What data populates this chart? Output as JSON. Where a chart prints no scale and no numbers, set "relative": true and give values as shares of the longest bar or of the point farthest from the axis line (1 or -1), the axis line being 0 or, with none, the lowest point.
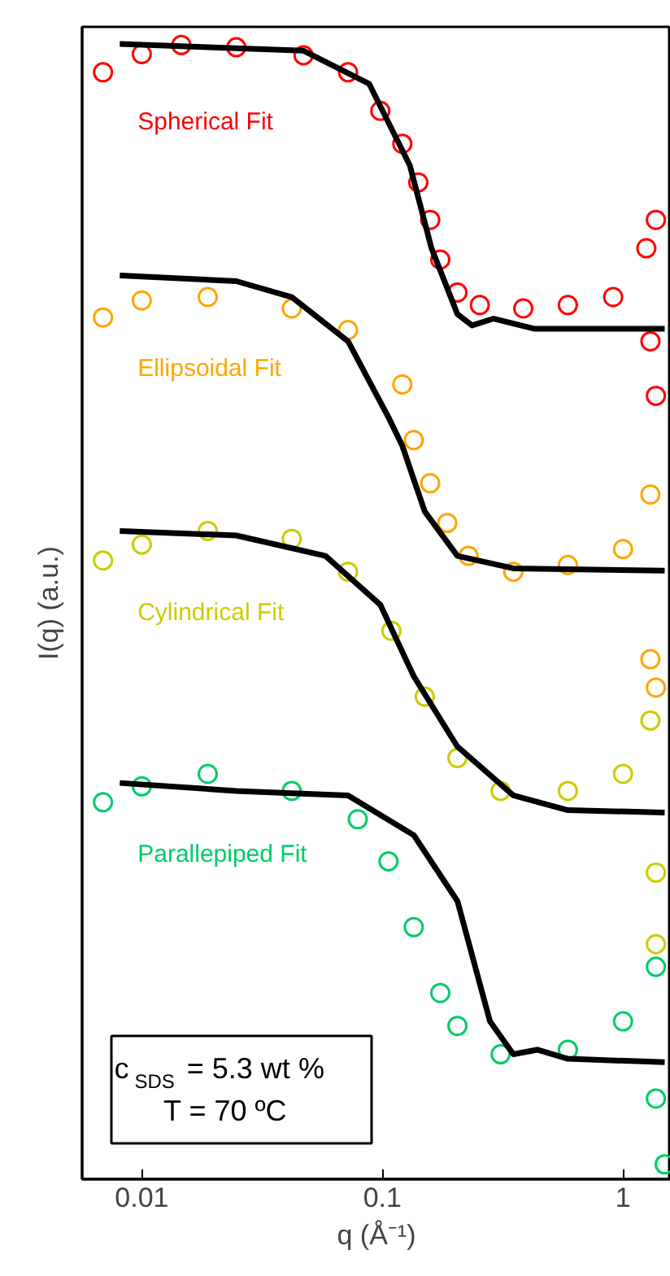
{
  "chart_data": {
    "type": "scatter",
    "relative": true,
    "xlabel": "q (Å⁻¹)",
    "ylabel": "I(q) (a.u.)",
    "log": "x",
    "xlim": [
      0.00565,
      1.58
    ],
    "xticks": [
      0.01,
      0.1,
      1
    ],
    "tick_labels": "x",
    "grid": false,
    "marker": "circle",
    "series": [
      {
        "name": "Spherical Fit",
        "color": "#ff0000",
        "x": [
          0.0069,
          0.01,
          0.0146,
          0.0247,
          0.047,
          0.072,
          0.098,
          0.121,
          0.141,
          0.158,
          0.174,
          0.205,
          0.254,
          0.385,
          0.59,
          0.91,
          1.25,
          1.37,
          1.3,
          1.37
        ],
        "values": [
          0.975,
          0.991,
          0.999,
          0.997,
          0.99,
          0.975,
          0.941,
          0.912,
          0.878,
          0.845,
          0.81,
          0.781,
          0.77,
          0.767,
          0.77,
          0.777,
          0.82,
          0.845,
          0.738,
          0.69
        ]
      },
      {
        "type": "line",
        "marker": "none",
        "color": "#000000",
        "x": [
          0.0081,
          0.047,
          0.088,
          0.13,
          0.16,
          0.205,
          0.236,
          0.29,
          0.43,
          1.49
        ],
        "values": [
          1.0,
          0.994,
          0.965,
          0.893,
          0.82,
          0.762,
          0.752,
          0.758,
          0.749,
          0.749
        ]
      },
      {
        "name": "Ellipsoidal Fit",
        "color": "#ffa500",
        "x": [
          0.0069,
          0.01,
          0.0188,
          0.042,
          0.072,
          0.121,
          0.135,
          0.158,
          0.186,
          0.228,
          0.35,
          0.59,
          1.0,
          1.3,
          1.3,
          1.37
        ],
        "values": [
          0.759,
          0.774,
          0.777,
          0.767,
          0.748,
          0.7,
          0.651,
          0.613,
          0.578,
          0.549,
          0.535,
          0.541,
          0.555,
          0.603,
          0.458,
          0.433
        ]
      },
      {
        "type": "line",
        "marker": "none",
        "color": "#000000",
        "x": [
          0.0081,
          0.0247,
          0.042,
          0.072,
          0.106,
          0.121,
          0.15,
          0.205,
          0.35,
          1.49
        ],
        "values": [
          0.796,
          0.791,
          0.777,
          0.738,
          0.671,
          0.646,
          0.588,
          0.549,
          0.538,
          0.536
        ]
      },
      {
        "name": "Cylindrical Fit",
        "color": "#cccc00",
        "x": [
          0.0069,
          0.01,
          0.0188,
          0.042,
          0.072,
          0.109,
          0.15,
          0.205,
          0.31,
          0.59,
          1.0,
          1.3,
          1.37,
          1.37
        ],
        "values": [
          0.545,
          0.559,
          0.571,
          0.564,
          0.535,
          0.483,
          0.425,
          0.371,
          0.342,
          0.342,
          0.357,
          0.404,
          0.27,
          0.207
        ]
      },
      {
        "type": "line",
        "marker": "none",
        "color": "#000000",
        "x": [
          0.0081,
          0.0247,
          0.058,
          0.098,
          0.135,
          0.205,
          0.35,
          0.59,
          1.49
        ],
        "values": [
          0.571,
          0.567,
          0.549,
          0.506,
          0.443,
          0.381,
          0.338,
          0.325,
          0.323
        ]
      },
      {
        "name": "Parallepiped Fit",
        "color": "#00cc66",
        "x": [
          0.0069,
          0.01,
          0.0188,
          0.042,
          0.079,
          0.106,
          0.135,
          0.174,
          0.205,
          0.31,
          0.59,
          1.0,
          1.37,
          1.37,
          1.49
        ],
        "values": [
          0.332,
          0.346,
          0.357,
          0.342,
          0.317,
          0.28,
          0.222,
          0.164,
          0.135,
          0.11,
          0.114,
          0.139,
          0.187,
          0.071,
          0.013
        ]
      },
      {
        "type": "line",
        "marker": "none",
        "color": "#000000",
        "x": [
          0.0081,
          0.0247,
          0.072,
          0.135,
          0.205,
          0.28,
          0.35,
          0.44,
          0.59,
          1.49
        ],
        "values": [
          0.349,
          0.342,
          0.338,
          0.303,
          0.245,
          0.139,
          0.11,
          0.114,
          0.106,
          0.103
        ]
      }
    ],
    "annotations": [
      "c$_{SDS}$ = 5.3 wt %",
      "T = 70 ºC"
    ]
  }
}
